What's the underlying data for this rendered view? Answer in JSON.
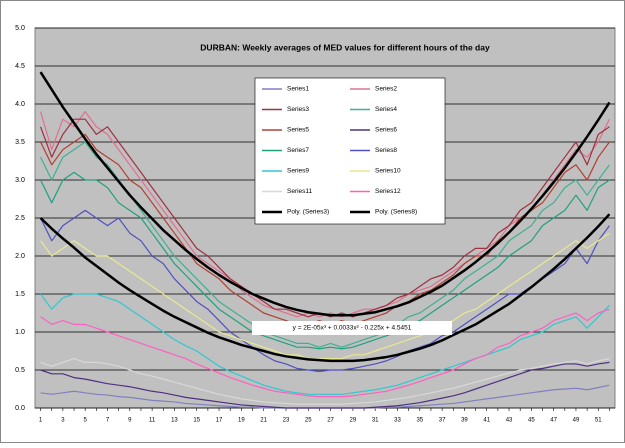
{
  "chart_data": {
    "type": "line",
    "title": "DURBAN:  Weekly averages of MED values for different hours of the day",
    "annotation": "y = 2E-05x³ + 0.0033x² - 0.225x + 4.5451",
    "categories": [
      "1",
      null,
      "3",
      null,
      "5",
      null,
      "7",
      null,
      "9",
      null,
      "11",
      null,
      "13",
      null,
      "15",
      null,
      "17",
      null,
      "19",
      null,
      "21",
      null,
      "23",
      null,
      "25",
      null,
      "27",
      null,
      "29",
      null,
      "31",
      null,
      "33",
      null,
      "35",
      null,
      "37",
      null,
      "39",
      null,
      "41",
      null,
      "43",
      null,
      "45",
      null,
      "47",
      null,
      "49",
      null,
      "51",
      null
    ],
    "ylim": [
      0,
      5
    ],
    "yticks": [
      {
        "value": 0,
        "label": "0.0"
      },
      0.5,
      {
        "value": 1,
        "label": "1.0"
      },
      1.5,
      {
        "value": 2,
        "label": "2.0"
      },
      2.5,
      {
        "value": 3,
        "label": "3.0"
      },
      3.5,
      {
        "value": 4,
        "label": "4.0"
      },
      4.5,
      {
        "value": 5,
        "label": "5.0"
      }
    ],
    "grid": true,
    "series": [
      {
        "name": "Series1",
        "color": "#8080c0",
        "values": [
          0.2,
          0.18,
          0.2,
          0.22,
          0.2,
          0.18,
          0.17,
          0.15,
          0.14,
          0.12,
          0.1,
          0.09,
          0.08,
          0.06,
          0.05,
          0.04,
          0.03,
          0.02,
          0.01,
          0.01,
          0,
          0,
          0,
          0,
          0,
          0,
          0,
          0,
          0,
          0,
          0,
          0.01,
          0.01,
          0.02,
          0.03,
          0.04,
          0.05,
          0.06,
          0.08,
          0.1,
          0.12,
          0.14,
          0.16,
          0.18,
          0.2,
          0.22,
          0.24,
          0.25,
          0.26,
          0.24,
          0.27,
          0.3
        ]
      },
      {
        "name": "Series2",
        "color": "#e07090",
        "values": [
          3.9,
          3.4,
          3.8,
          3.7,
          3.9,
          3.7,
          3.6,
          3.4,
          3.2,
          3.0,
          2.8,
          2.6,
          2.4,
          2.2,
          2.0,
          1.9,
          1.8,
          1.7,
          1.55,
          1.45,
          1.35,
          1.3,
          1.25,
          1.2,
          1.25,
          1.2,
          1.25,
          1.2,
          1.25,
          1.3,
          1.3,
          1.35,
          1.4,
          1.5,
          1.55,
          1.6,
          1.7,
          1.8,
          1.9,
          2.0,
          2.1,
          2.2,
          2.4,
          2.5,
          2.6,
          2.8,
          3.0,
          3.2,
          3.4,
          3.3,
          3.5,
          3.8
        ]
      },
      {
        "name": "Series3",
        "color": "#a03040",
        "values": [
          3.7,
          3.3,
          3.6,
          3.8,
          3.8,
          3.6,
          3.7,
          3.5,
          3.3,
          3.1,
          2.9,
          2.7,
          2.5,
          2.3,
          2.1,
          2.0,
          1.85,
          1.7,
          1.6,
          1.5,
          1.4,
          1.3,
          1.3,
          1.25,
          1.2,
          1.25,
          1.2,
          1.25,
          1.2,
          1.25,
          1.3,
          1.35,
          1.45,
          1.5,
          1.6,
          1.7,
          1.75,
          1.85,
          2.0,
          2.1,
          2.1,
          2.3,
          2.4,
          2.6,
          2.7,
          2.9,
          3.1,
          3.3,
          3.5,
          3.2,
          3.6,
          3.7
        ]
      },
      {
        "name": "Series4",
        "color": "#40b090",
        "values": [
          3.3,
          3.0,
          3.3,
          3.4,
          3.5,
          3.3,
          3.2,
          3.0,
          2.8,
          2.6,
          2.4,
          2.2,
          2.0,
          1.85,
          1.7,
          1.55,
          1.4,
          1.3,
          1.2,
          1.1,
          1.0,
          0.95,
          0.9,
          0.85,
          0.85,
          0.8,
          0.85,
          0.8,
          0.85,
          0.9,
          0.95,
          1.0,
          1.1,
          1.2,
          1.25,
          1.35,
          1.45,
          1.55,
          1.7,
          1.8,
          1.9,
          2.0,
          2.2,
          2.3,
          2.4,
          2.6,
          2.7,
          2.9,
          3.0,
          2.8,
          3.0,
          3.2
        ]
      },
      {
        "name": "Series5",
        "color": "#b04030",
        "values": [
          3.5,
          3.2,
          3.4,
          3.5,
          3.6,
          3.4,
          3.3,
          3.2,
          3.0,
          2.9,
          2.7,
          2.5,
          2.3,
          2.1,
          1.9,
          1.8,
          1.7,
          1.55,
          1.45,
          1.35,
          1.25,
          1.2,
          1.15,
          1.1,
          1.1,
          1.15,
          1.1,
          1.15,
          1.1,
          1.15,
          1.2,
          1.25,
          1.35,
          1.4,
          1.5,
          1.55,
          1.65,
          1.75,
          1.9,
          2.0,
          2.0,
          2.2,
          2.3,
          2.5,
          2.6,
          2.7,
          2.9,
          3.1,
          3.2,
          3.0,
          3.3,
          3.5
        ]
      },
      {
        "name": "Series6",
        "color": "#503080",
        "values": [
          0.5,
          0.45,
          0.45,
          0.4,
          0.38,
          0.35,
          0.32,
          0.3,
          0.28,
          0.25,
          0.22,
          0.2,
          0.17,
          0.14,
          0.12,
          0.1,
          0.08,
          0.06,
          0.04,
          0.03,
          0.02,
          0.01,
          0,
          0,
          0,
          0,
          0,
          0,
          0,
          0,
          0.01,
          0.02,
          0.03,
          0.05,
          0.07,
          0.1,
          0.13,
          0.16,
          0.2,
          0.25,
          0.3,
          0.35,
          0.4,
          0.45,
          0.5,
          0.52,
          0.55,
          0.58,
          0.58,
          0.55,
          0.58,
          0.6
        ]
      },
      {
        "name": "Series7",
        "color": "#20a080",
        "values": [
          3.0,
          2.7,
          3.0,
          3.1,
          3.0,
          3.0,
          2.9,
          2.7,
          2.6,
          2.5,
          2.3,
          2.1,
          1.9,
          1.75,
          1.6,
          1.45,
          1.3,
          1.2,
          1.1,
          1.0,
          0.95,
          0.9,
          0.85,
          0.8,
          0.8,
          0.78,
          0.8,
          0.78,
          0.8,
          0.85,
          0.9,
          0.95,
          1.0,
          1.1,
          1.15,
          1.25,
          1.35,
          1.45,
          1.55,
          1.65,
          1.75,
          1.85,
          2.0,
          2.1,
          2.2,
          2.4,
          2.5,
          2.6,
          2.8,
          2.6,
          2.9,
          3.0
        ]
      },
      {
        "name": "Series8",
        "color": "#5050c0",
        "values": [
          2.5,
          2.2,
          2.4,
          2.5,
          2.6,
          2.5,
          2.4,
          2.5,
          2.3,
          2.2,
          2.0,
          1.9,
          1.7,
          1.55,
          1.4,
          1.3,
          1.15,
          1.0,
          0.9,
          0.8,
          0.7,
          0.62,
          0.58,
          0.52,
          0.5,
          0.48,
          0.5,
          0.5,
          0.52,
          0.55,
          0.58,
          0.62,
          0.68,
          0.75,
          0.8,
          0.85,
          0.95,
          1.0,
          1.1,
          1.2,
          1.3,
          1.4,
          1.5,
          1.5,
          1.6,
          1.7,
          1.8,
          1.9,
          2.1,
          1.9,
          2.2,
          2.4
        ]
      },
      {
        "name": "Series9",
        "color": "#30c8d0",
        "values": [
          1.5,
          1.3,
          1.45,
          1.5,
          1.5,
          1.5,
          1.45,
          1.4,
          1.3,
          1.2,
          1.1,
          1.0,
          0.9,
          0.82,
          0.75,
          0.65,
          0.55,
          0.48,
          0.42,
          0.36,
          0.3,
          0.26,
          0.22,
          0.2,
          0.18,
          0.18,
          0.18,
          0.18,
          0.2,
          0.22,
          0.24,
          0.27,
          0.3,
          0.35,
          0.4,
          0.45,
          0.5,
          0.55,
          0.6,
          0.65,
          0.7,
          0.75,
          0.8,
          0.9,
          0.95,
          1.0,
          1.1,
          1.15,
          1.2,
          1.05,
          1.2,
          1.35
        ]
      },
      {
        "name": "Series10",
        "color": "#e8e890",
        "values": [
          2.2,
          2.0,
          2.1,
          2.2,
          2.1,
          2.0,
          2.0,
          1.9,
          1.8,
          1.7,
          1.6,
          1.5,
          1.4,
          1.3,
          1.2,
          1.1,
          1.0,
          0.95,
          0.9,
          0.85,
          0.8,
          0.75,
          0.7,
          0.7,
          0.65,
          0.65,
          0.65,
          0.65,
          0.7,
          0.7,
          0.75,
          0.8,
          0.85,
          0.9,
          0.95,
          1.0,
          1.1,
          1.15,
          1.25,
          1.3,
          1.4,
          1.5,
          1.6,
          1.7,
          1.8,
          1.9,
          2.0,
          2.1,
          2.2,
          2.1,
          2.2,
          2.3
        ]
      },
      {
        "name": "Series11",
        "color": "#d8d8d8",
        "values": [
          0.6,
          0.55,
          0.6,
          0.65,
          0.6,
          0.6,
          0.58,
          0.55,
          0.5,
          0.45,
          0.42,
          0.38,
          0.34,
          0.3,
          0.26,
          0.22,
          0.18,
          0.15,
          0.12,
          0.1,
          0.08,
          0.07,
          0.06,
          0.05,
          0.05,
          0.05,
          0.05,
          0.05,
          0.06,
          0.07,
          0.08,
          0.1,
          0.12,
          0.14,
          0.17,
          0.2,
          0.23,
          0.26,
          0.3,
          0.34,
          0.38,
          0.42,
          0.46,
          0.5,
          0.52,
          0.55,
          0.58,
          0.6,
          0.62,
          0.58,
          0.62,
          0.65
        ]
      },
      {
        "name": "Series12",
        "color": "#ff60c0",
        "values": [
          1.2,
          1.1,
          1.15,
          1.1,
          1.1,
          1.05,
          1.0,
          0.95,
          0.9,
          0.85,
          0.8,
          0.75,
          0.7,
          0.65,
          0.58,
          0.52,
          0.46,
          0.4,
          0.35,
          0.3,
          0.26,
          0.22,
          0.2,
          0.18,
          0.16,
          0.15,
          0.15,
          0.15,
          0.16,
          0.18,
          0.2,
          0.22,
          0.26,
          0.3,
          0.35,
          0.4,
          0.45,
          0.5,
          0.58,
          0.65,
          0.7,
          0.8,
          0.85,
          0.95,
          1.0,
          1.05,
          1.15,
          1.2,
          1.25,
          1.15,
          1.25,
          1.3
        ]
      },
      {
        "name": "Poly. (Series3)",
        "color": "#000000",
        "line_width": 2.5,
        "values": [
          4.42,
          4.19,
          3.96,
          3.75,
          3.54,
          3.34,
          3.16,
          2.98,
          2.8,
          2.64,
          2.49,
          2.34,
          2.21,
          2.08,
          1.96,
          1.85,
          1.75,
          1.66,
          1.58,
          1.5,
          1.44,
          1.38,
          1.33,
          1.29,
          1.26,
          1.24,
          1.22,
          1.22,
          1.22,
          1.24,
          1.26,
          1.3,
          1.34,
          1.39,
          1.46,
          1.53,
          1.61,
          1.71,
          1.81,
          1.92,
          2.04,
          2.17,
          2.31,
          2.46,
          2.62,
          2.79,
          2.97,
          3.16,
          3.36,
          3.57,
          3.79,
          4.02
        ]
      },
      {
        "name": "Poly. (Series8)",
        "color": "#000000",
        "line_width": 2.5,
        "values": [
          2.5,
          2.36,
          2.23,
          2.11,
          1.98,
          1.87,
          1.76,
          1.65,
          1.55,
          1.46,
          1.37,
          1.28,
          1.2,
          1.13,
          1.06,
          0.99,
          0.93,
          0.88,
          0.83,
          0.79,
          0.75,
          0.71,
          0.68,
          0.66,
          0.64,
          0.63,
          0.62,
          0.62,
          0.62,
          0.63,
          0.65,
          0.67,
          0.7,
          0.74,
          0.78,
          0.83,
          0.89,
          0.96,
          1.03,
          1.1,
          1.19,
          1.28,
          1.37,
          1.48,
          1.59,
          1.71,
          1.83,
          1.96,
          2.1,
          2.24,
          2.39,
          2.55
        ]
      }
    ]
  }
}
